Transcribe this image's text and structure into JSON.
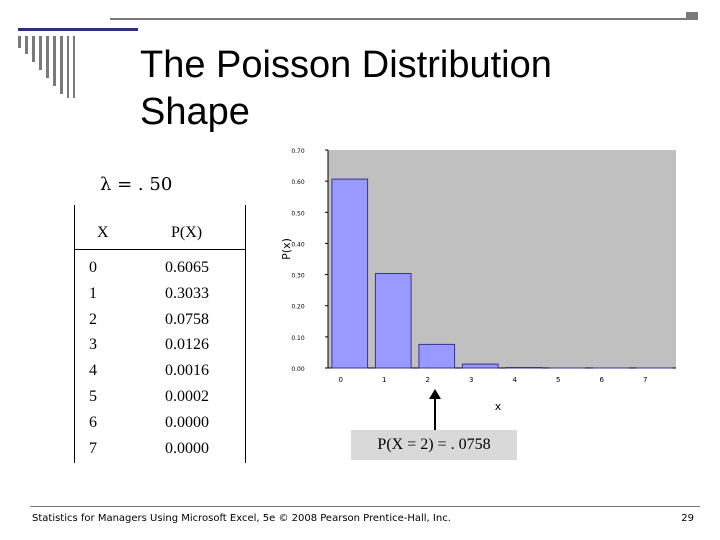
{
  "slide": {
    "title": "The Poisson Distribution Shape",
    "lambda_label": "λ = . 50",
    "footer": "Statistics for Managers Using Microsoft Excel, 5e © 2008 Pearson Prentice-Hall, Inc.",
    "page_number": "29"
  },
  "table": {
    "headers": [
      "X",
      "P(X)"
    ],
    "rows": [
      {
        "x": "0",
        "p": "0.6065"
      },
      {
        "x": "1",
        "p": "0.3033"
      },
      {
        "x": "2",
        "p": "0.0758"
      },
      {
        "x": "3",
        "p": "0.0126"
      },
      {
        "x": "4",
        "p": "0.0016"
      },
      {
        "x": "5",
        "p": "0.0002"
      },
      {
        "x": "6",
        "p": "0.0000"
      },
      {
        "x": "7",
        "p": "0.0000"
      }
    ]
  },
  "callout": {
    "text": "P(X = 2) = . 0758"
  },
  "colors": {
    "bar_fill": "#9999ff",
    "bar_stroke": "#333399",
    "plot_bg": "#c0c0c0",
    "callout_bg": "#d9d9d9"
  },
  "chart_data": {
    "type": "bar",
    "categories": [
      "0",
      "1",
      "2",
      "3",
      "4",
      "5",
      "6",
      "7"
    ],
    "values": [
      0.6065,
      0.3033,
      0.0758,
      0.0126,
      0.0016,
      0.0002,
      0.0,
      0.0
    ],
    "xlabel": "x",
    "ylabel": "P(x)",
    "ylim": [
      0,
      0.7
    ],
    "yticks": [
      "0.00",
      "0.10",
      "0.20",
      "0.30",
      "0.40",
      "0.50",
      "0.60",
      "0.70"
    ],
    "grid": false,
    "legend": "none"
  }
}
